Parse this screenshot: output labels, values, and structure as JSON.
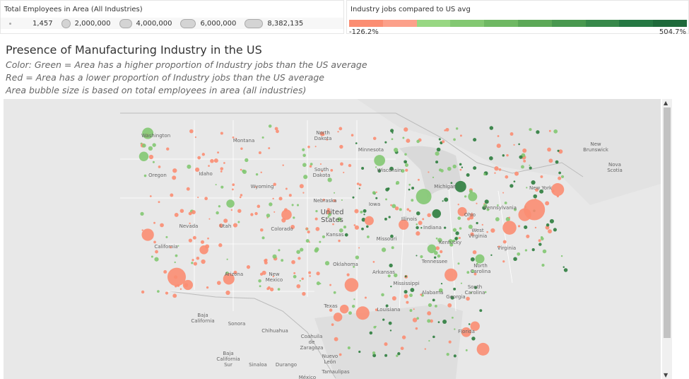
{
  "size_legend": {
    "title": "Total Employees in Area (All Industries)",
    "items": [
      {
        "label": "1,457",
        "w": 3
      },
      {
        "label": "2,000,000",
        "w": 13
      },
      {
        "label": "4,000,000",
        "w": 18
      },
      {
        "label": "6,000,000",
        "w": 22
      },
      {
        "label": "8,382,135",
        "w": 26
      }
    ]
  },
  "color_legend": {
    "title": "Industry jobs compared to US avg",
    "min": "-126.2%",
    "max": "504.7%",
    "steps": [
      "#fb8d72",
      "#fca08a",
      "#98d783",
      "#83c872",
      "#6fb863",
      "#5ca857",
      "#49984f",
      "#37884a",
      "#267843",
      "#1f6a3b"
    ]
  },
  "title": "Presence of Manufacturing Industry in the US",
  "subtitles": [
    "Color: Green = Area has a higher proportion of Industry jobs than the US average",
    "Red = Area has a lower proportion of Industry jobs than the US average",
    "Area bubble size is based on total employees in area (all industries)"
  ],
  "colors": {
    "red": "#fb8d72",
    "green": "#83c872",
    "dark_green": "#2e7d3e"
  },
  "map_labels": [
    "Washington",
    "Montana",
    "North Dakota",
    "Minnesota",
    "Oregon",
    "Idaho",
    "Wyoming",
    "South Dakota",
    "Wisconsin",
    "Michigan",
    "New York",
    "Nebraska",
    "United States",
    "Iowa",
    "Illinois",
    "Indiana",
    "Ohio",
    "Pennsylvania",
    "Nevada",
    "Utah",
    "Colorado",
    "Kansas",
    "Missouri",
    "Kentucky",
    "West Virginia",
    "Virginia",
    "California",
    "Oklahoma",
    "Arkansas",
    "Tennessee",
    "North Carolina",
    "South Carolina",
    "Arizona",
    "New Mexico",
    "Texas",
    "Mississippi",
    "Alabama",
    "Georgia",
    "Louisiana",
    "Florida",
    "Baja California",
    "Sonora",
    "Chihuahua",
    "Coahuila de Zaragoza",
    "Baja California Sur",
    "Sinaloa",
    "Durango",
    "Nuevo León",
    "Tamaulipas",
    "México",
    "New Brunswick",
    "Nova Scotia"
  ],
  "bubbles": [
    {
      "name": "New York",
      "lon": -74.0,
      "lat": 40.1,
      "emp": 8382135,
      "v": -40
    },
    {
      "name": "Los Angeles",
      "lon": -118.6,
      "lat": 33.4,
      "emp": 6000000,
      "v": -30
    },
    {
      "name": "Chicago",
      "lon": -87.8,
      "lat": 41.4,
      "emp": 4000000,
      "v": 30
    },
    {
      "name": "Washington DC",
      "lon": -77.1,
      "lat": 38.3,
      "emp": 3000000,
      "v": -60
    },
    {
      "name": "Boston",
      "lon": -71.1,
      "lat": 42.1,
      "emp": 2500000,
      "v": -20
    },
    {
      "name": "Dallas",
      "lon": -96.8,
      "lat": 32.6,
      "emp": 3000000,
      "v": -15
    },
    {
      "name": "Houston",
      "lon": -95.4,
      "lat": 29.8,
      "emp": 2800000,
      "v": -10
    },
    {
      "name": "Philadelphia",
      "lon": -75.2,
      "lat": 39.6,
      "emp": 2500000,
      "v": -15
    },
    {
      "name": "Atlanta",
      "lon": -84.4,
      "lat": 33.6,
      "emp": 2500000,
      "v": -20
    },
    {
      "name": "Miami",
      "lon": -80.4,
      "lat": 26.2,
      "emp": 2400000,
      "v": -50
    },
    {
      "name": "Seattle",
      "lon": -122.2,
      "lat": 47.7,
      "emp": 1800000,
      "v": 30
    },
    {
      "name": "San Francisco",
      "lon": -122.2,
      "lat": 37.6,
      "emp": 2200000,
      "v": -10
    },
    {
      "name": "Phoenix",
      "lon": -112.1,
      "lat": 33.2,
      "emp": 1800000,
      "v": -20
    },
    {
      "name": "Detroit",
      "lon": -83.2,
      "lat": 42.4,
      "emp": 1800000,
      "v": 60
    },
    {
      "name": "Minneapolis",
      "lon": -93.3,
      "lat": 45.0,
      "emp": 1700000,
      "v": 20
    },
    {
      "name": "Denver",
      "lon": -104.9,
      "lat": 39.6,
      "emp": 1400000,
      "v": -20
    },
    {
      "name": "San Diego",
      "lon": -117.2,
      "lat": 32.6,
      "emp": 1300000,
      "v": -10
    },
    {
      "name": "St. Louis",
      "lon": -90.3,
      "lat": 38.6,
      "emp": 1300000,
      "v": -5
    },
    {
      "name": "Tampa",
      "lon": -82.5,
      "lat": 27.9,
      "emp": 1200000,
      "v": -30
    },
    {
      "name": "Orlando",
      "lon": -81.4,
      "lat": 28.5,
      "emp": 1100000,
      "v": -40
    },
    {
      "name": "Las Vegas",
      "lon": -115.2,
      "lat": 36.1,
      "emp": 900000,
      "v": -60
    },
    {
      "name": "Portland",
      "lon": -122.7,
      "lat": 45.4,
      "emp": 1100000,
      "v": 20
    },
    {
      "name": "Kansas City",
      "lon": -94.6,
      "lat": 39.0,
      "emp": 1000000,
      "v": -5
    },
    {
      "name": "Charlotte",
      "lon": -80.8,
      "lat": 35.2,
      "emp": 1000000,
      "v": 25
    },
    {
      "name": "Cleveland",
      "lon": -81.7,
      "lat": 41.4,
      "emp": 1000000,
      "v": 40
    },
    {
      "name": "Columbus",
      "lon": -83.0,
      "lat": 39.9,
      "emp": 1000000,
      "v": -5
    },
    {
      "name": "Austin",
      "lon": -97.7,
      "lat": 30.2,
      "emp": 900000,
      "v": -20
    },
    {
      "name": "San Antonio",
      "lon": -98.5,
      "lat": 29.4,
      "emp": 900000,
      "v": -30
    },
    {
      "name": "Nashville",
      "lon": -86.8,
      "lat": 36.2,
      "emp": 900000,
      "v": 10
    },
    {
      "name": "Salt Lake City",
      "lon": -111.9,
      "lat": 40.7,
      "emp": 700000,
      "v": 10
    },
    {
      "name": "Indianapolis",
      "lon": -86.2,
      "lat": 39.7,
      "emp": 900000,
      "v": 50
    }
  ]
}
